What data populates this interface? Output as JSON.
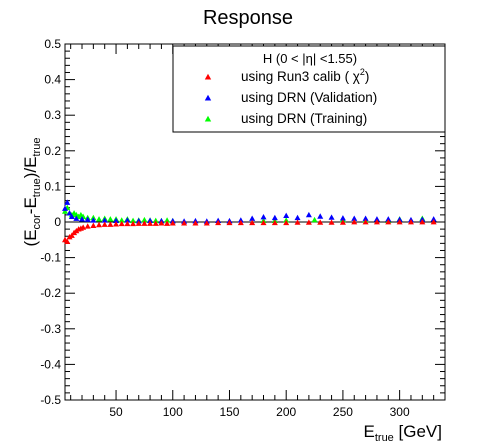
{
  "chart_data": {
    "type": "scatter",
    "title": "Response",
    "xlabel": {
      "main": "E",
      "sub": "true",
      "rest": " [GeV]"
    },
    "ylabel": {
      "p1": "(E",
      "s1": "cor",
      "p2": "-E",
      "s2": "true",
      "p3": ")/E",
      "s3": "true"
    },
    "xlim": [
      5,
      340
    ],
    "ylim": [
      -0.5,
      0.5
    ],
    "xticks": [
      50,
      100,
      150,
      200,
      250,
      300
    ],
    "yticks": [
      -0.5,
      -0.4,
      -0.3,
      -0.2,
      -0.1,
      0,
      0.1,
      0.2,
      0.3,
      0.4,
      0.5
    ],
    "grid": false,
    "legend": {
      "position": "top-right",
      "header": "H (0 < |η| <1.55)",
      "entries": [
        {
          "text": "using Run3 calib (  χ",
          "sup": "2",
          "close": ")",
          "color": "#ff0000"
        },
        {
          "text": "using DRN (Validation)",
          "sup": "",
          "close": "",
          "color": "#0000ff"
        },
        {
          "text": "using DRN (Training)",
          "sup": "",
          "close": "",
          "color": "#00ff00"
        }
      ]
    },
    "series": [
      {
        "color": "#00ff00",
        "x": [
          5,
          7,
          9,
          11,
          13,
          15,
          17,
          19,
          21,
          25,
          30,
          35,
          40,
          45,
          50,
          55,
          60,
          65,
          70,
          75,
          80,
          85,
          90,
          95,
          100,
          180,
          190,
          200,
          225,
          250,
          270,
          290,
          300,
          320
        ],
        "y": [
          0.03,
          0.04,
          0.025,
          0.02,
          0.025,
          0.02,
          0.015,
          0.02,
          0.015,
          0.012,
          0.012,
          0.008,
          0.01,
          0.008,
          0.008,
          0.005,
          0.008,
          0.004,
          0.005,
          0.006,
          0.005,
          0.004,
          0.003,
          0.005,
          0.003,
          0.004,
          0.004,
          0.005,
          0.006,
          0.006,
          0.005,
          0.004,
          0.008,
          0.01
        ]
      },
      {
        "color": "#0000ff",
        "x": [
          5,
          7,
          9,
          11,
          15,
          20,
          25,
          30,
          40,
          50,
          60,
          70,
          80,
          90,
          100,
          110,
          120,
          130,
          140,
          150,
          160,
          170,
          180,
          190,
          200,
          210,
          220,
          230,
          240,
          250,
          260,
          270,
          280,
          290,
          300,
          310,
          320,
          330
        ],
        "y": [
          0.038,
          0.055,
          0.025,
          0.015,
          0.01,
          0.008,
          0.007,
          0.005,
          0.005,
          0.004,
          0.005,
          0.003,
          0.004,
          0.003,
          0.003,
          0.002,
          0.003,
          0.002,
          0.004,
          0.003,
          0.005,
          0.01,
          0.014,
          0.012,
          0.018,
          0.012,
          0.02,
          0.016,
          0.013,
          0.011,
          0.01,
          0.01,
          0.008,
          0.008,
          0.007,
          0.006,
          0.007,
          0.008
        ]
      },
      {
        "color": "#ff0000",
        "x": [
          5,
          7,
          9,
          11,
          13,
          15,
          17,
          19,
          21,
          25,
          30,
          35,
          40,
          45,
          50,
          55,
          60,
          65,
          70,
          75,
          80,
          85,
          90,
          95,
          100,
          110,
          120,
          130,
          140,
          150,
          160,
          170,
          180,
          190,
          200,
          210,
          220,
          230,
          240,
          250,
          260,
          270,
          280,
          290,
          300,
          310,
          320,
          330
        ],
        "y": [
          -0.05,
          -0.055,
          -0.042,
          -0.038,
          -0.03,
          -0.025,
          -0.02,
          -0.018,
          -0.015,
          -0.012,
          -0.01,
          -0.008,
          -0.007,
          -0.007,
          -0.006,
          -0.005,
          -0.005,
          -0.005,
          -0.004,
          -0.004,
          -0.004,
          -0.004,
          -0.003,
          -0.004,
          -0.003,
          -0.003,
          -0.003,
          -0.003,
          -0.002,
          -0.002,
          -0.002,
          -0.002,
          -0.002,
          -0.002,
          -0.002,
          -0.001,
          -0.001,
          -0.001,
          -0.001,
          -0.001,
          0.0,
          0.0,
          0.0,
          0.0,
          0.0,
          0.0,
          0.0,
          0.0
        ]
      }
    ]
  }
}
